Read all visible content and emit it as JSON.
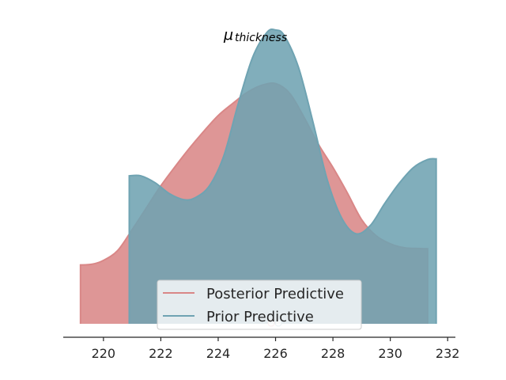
{
  "chart_data": {
    "type": "area",
    "title": {
      "symbol": "μ",
      "subscript": "thickness"
    },
    "xlabel": "",
    "ylabel": "",
    "xlim": [
      218.6,
      232.3
    ],
    "x_ticks": [
      "220",
      "222",
      "224",
      "226",
      "228",
      "230",
      "232"
    ],
    "y_axis_visible": false,
    "grid": false,
    "legend_position": "lower-center",
    "series": [
      {
        "name": "Posterior Predictive",
        "color": "#d98787",
        "x": [
          219.2,
          219.6,
          220.0,
          220.5,
          221.0,
          221.5,
          222.0,
          222.5,
          223.0,
          223.5,
          224.0,
          224.5,
          225.0,
          225.5,
          226.0,
          226.5,
          227.0,
          227.5,
          228.0,
          228.5,
          229.0,
          229.5,
          230.0,
          230.5,
          231.0,
          231.3
        ],
        "density": [
          0.247,
          0.25,
          0.266,
          0.308,
          0.395,
          0.487,
          0.579,
          0.66,
          0.737,
          0.808,
          0.874,
          0.924,
          0.97,
          1.0,
          1.008,
          0.966,
          0.865,
          0.752,
          0.656,
          0.55,
          0.437,
          0.37,
          0.336,
          0.319,
          0.316,
          0.315
        ],
        "observed_point": 225.85
      },
      {
        "name": "Prior Predictive",
        "color": "#6fa3b2",
        "x": [
          220.9,
          221.3,
          221.8,
          222.3,
          222.8,
          223.2,
          223.7,
          224.2,
          224.7,
          225.2,
          225.7,
          226.0,
          226.3,
          226.8,
          227.3,
          227.8,
          228.3,
          228.8,
          229.3,
          229.8,
          230.3,
          230.8,
          231.3,
          231.6
        ],
        "density": [
          0.621,
          0.621,
          0.592,
          0.546,
          0.521,
          0.529,
          0.58,
          0.706,
          0.924,
          1.118,
          1.223,
          1.233,
          1.21,
          1.076,
          0.849,
          0.605,
          0.445,
          0.378,
          0.412,
          0.504,
          0.588,
          0.655,
          0.689,
          0.692
        ],
        "observed_point": 226.1
      }
    ]
  }
}
